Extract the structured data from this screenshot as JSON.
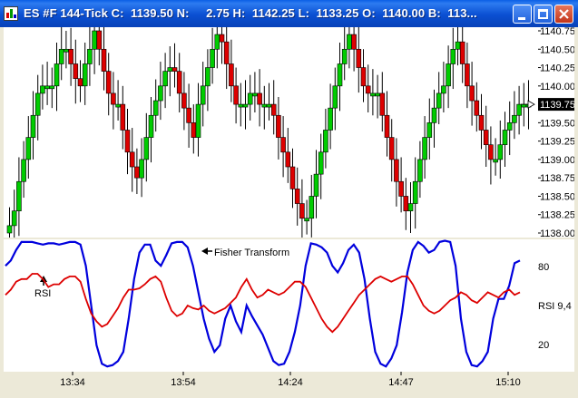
{
  "window": {
    "title": "ES #F 144-Tick C:  1139.50 N:     2.75 H:  1142.25 L:  1133.25 O:  1140.00 B:  113...",
    "buttons": [
      "minimize",
      "maximize",
      "close"
    ]
  },
  "price_panel": {
    "axis_labels": [
      "1140.75",
      "1140.50",
      "1140.25",
      "1140.00",
      "1139.75",
      "1139.50",
      "1139.25",
      "1139.00",
      "1138.75",
      "1138.50",
      "1138.25",
      "1138.00"
    ],
    "current_price": "1139.75"
  },
  "indicator_panel": {
    "annotations": {
      "fisher": "Fisher Transform",
      "rsi": "RSI"
    },
    "axis_labels": {
      "top": "80",
      "mid": "RSI 9,4",
      "bottom": "20"
    }
  },
  "time_axis": [
    "13:34",
    "13:54",
    "14:24",
    "14:47",
    "15:10"
  ],
  "colors": {
    "up": "#00CC00",
    "down": "#DD0000",
    "fisher": "#0000DD",
    "rsi": "#DD0000",
    "accent_titlebar": "#0A5FE6"
  },
  "chart_data": [
    {
      "type": "bar",
      "title": "",
      "x": "tick bars",
      "y_range": [
        1138.0,
        1140.75
      ],
      "y_ticks": [
        1138.0,
        1138.25,
        1138.5,
        1138.75,
        1139.0,
        1139.25,
        1139.5,
        1139.75,
        1140.0,
        1140.25,
        1140.5,
        1140.75
      ],
      "current": 1139.75,
      "grid": false,
      "close_series": [
        1138.1,
        1138.3,
        1138.7,
        1139.0,
        1139.3,
        1139.6,
        1139.9,
        1140.0,
        1140.0,
        1140.0,
        1140.3,
        1140.5,
        1140.5,
        1140.3,
        1140.1,
        1140.0,
        1140.3,
        1140.5,
        1140.75,
        1140.5,
        1140.2,
        1139.9,
        1139.75,
        1139.75,
        1139.4,
        1139.1,
        1138.9,
        1138.75,
        1139.0,
        1139.3,
        1139.6,
        1139.8,
        1140.0,
        1140.2,
        1140.25,
        1140.2,
        1139.9,
        1139.7,
        1139.5,
        1139.3,
        1139.75,
        1140.0,
        1140.25,
        1140.5,
        1140.7,
        1140.6,
        1140.3,
        1140.0,
        1139.75,
        1139.75,
        1139.75,
        1139.9,
        1139.9,
        1139.75,
        1139.75,
        1139.75,
        1139.6,
        1139.3,
        1139.1,
        1138.9,
        1138.6,
        1138.4,
        1138.2,
        1138.2,
        1138.5,
        1138.8,
        1139.1,
        1139.4,
        1139.7,
        1140.0,
        1140.3,
        1140.5,
        1140.7,
        1140.5,
        1140.25,
        1140.0,
        1139.9,
        1139.9,
        1139.9,
        1139.6,
        1139.3,
        1139.0,
        1138.7,
        1138.5,
        1138.3,
        1138.4,
        1138.7,
        1139.0,
        1139.3,
        1139.5,
        1139.7,
        1139.9,
        1140.0,
        1140.3,
        1140.5,
        1140.6,
        1140.3,
        1140.0,
        1139.8,
        1139.6,
        1139.4,
        1139.2,
        1139.0,
        1139.0,
        1139.2,
        1139.4,
        1139.5,
        1139.6,
        1139.75,
        1139.75,
        1139.75
      ]
    },
    {
      "type": "line",
      "title": "",
      "series": [
        {
          "name": "Fisher Transform",
          "values": [
            80,
            84,
            92,
            98,
            98,
            98,
            97,
            96,
            97,
            97,
            96,
            97,
            98,
            98,
            96,
            80,
            50,
            20,
            6,
            4,
            5,
            8,
            15,
            40,
            70,
            90,
            96,
            96,
            84,
            80,
            88,
            97,
            98,
            98,
            94,
            80,
            60,
            40,
            25,
            15,
            20,
            40,
            50,
            38,
            30,
            50,
            42,
            35,
            28,
            18,
            8,
            5,
            6,
            15,
            30,
            50,
            80,
            97,
            96,
            94,
            90,
            80,
            75,
            82,
            92,
            96,
            90,
            70,
            40,
            15,
            6,
            4,
            10,
            20,
            45,
            75,
            92,
            98,
            95,
            90,
            92,
            98,
            99,
            98,
            80,
            40,
            15,
            5,
            4,
            8,
            15,
            40,
            55,
            55,
            65,
            82,
            84
          ]
        },
        {
          "name": "RSI",
          "values": [
            58,
            62,
            68,
            70,
            70,
            74,
            74,
            70,
            64,
            66,
            66,
            70,
            72,
            72,
            68,
            55,
            44,
            38,
            34,
            36,
            42,
            48,
            56,
            62,
            62,
            63,
            66,
            70,
            72,
            68,
            56,
            46,
            42,
            44,
            50,
            48,
            47,
            50,
            46,
            44,
            46,
            48,
            52,
            56,
            64,
            70,
            62,
            56,
            58,
            62,
            60,
            58,
            60,
            64,
            68,
            68,
            64,
            56,
            48,
            40,
            34,
            30,
            34,
            40,
            46,
            52,
            58,
            62,
            66,
            70,
            72,
            70,
            68,
            70,
            72,
            72,
            66,
            58,
            50,
            46,
            44,
            46,
            50,
            54,
            56,
            60,
            58,
            54,
            52,
            56,
            60,
            58,
            56,
            60,
            62,
            58,
            60
          ]
        }
      ],
      "y_labels": [
        "80",
        "RSI 9,4",
        "20"
      ],
      "y_range": [
        0,
        100
      ]
    }
  ]
}
